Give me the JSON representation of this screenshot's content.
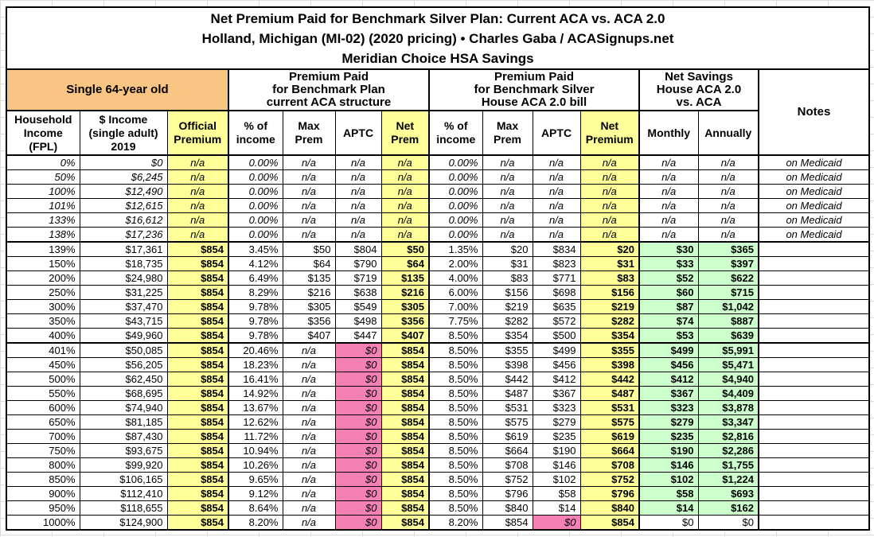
{
  "colors": {
    "orange": "#F8C583",
    "yellow": "#FFFF99",
    "pink": "#F480B4",
    "green": "#CCFFCC",
    "grid": "#DCDCDC",
    "border": "#000000"
  },
  "chart_data": {
    "type": "table",
    "title": "Net Premium Paid for Benchmark Silver Plan: Current ACA vs. ACA 2.0",
    "subtitle": "Holland, Michigan (MI-02) (2020 pricing) • Charles Gaba / ACASignups.net",
    "subtitle2": "Meridian Choice HSA Savings",
    "column_groups": {
      "subject": "Single 64-year old",
      "aca": "Premium Paid\nfor Benchmark Plan\ncurrent ACA structure",
      "aca2": "Premium Paid\nfor Benchmark Silver\nHouse ACA 2.0 bill",
      "savings": "Net Savings\nHouse ACA 2.0\nvs. ACA",
      "notes": "Notes"
    },
    "column_headers": {
      "fpl": "Household\nIncome\n(FPL)",
      "income": "$ Income\n(single adult)\n2019",
      "official": "Official\nPremium",
      "pct1": "% of\nincome",
      "max1": "Max\nPrem",
      "aptc1": "APTC",
      "net1": "Net\nPrem",
      "pct2": "% of\nincome",
      "max2": "Max\nPrem",
      "aptc2": "APTC",
      "net2": "Net\nPremium",
      "monthly": "Monthly",
      "annually": "Annually"
    },
    "rows": [
      {
        "fpl": "0%",
        "income": "$0",
        "official": "n/a",
        "pct1": "0.00%",
        "max1": "n/a",
        "aptc1": "n/a",
        "net1": "n/a",
        "pct2": "0.00%",
        "max2": "n/a",
        "aptc2": "n/a",
        "net2": "n/a",
        "monthly": "n/a",
        "annually": "n/a",
        "note": "on Medicaid"
      },
      {
        "fpl": "50%",
        "income": "$6,245",
        "official": "n/a",
        "pct1": "0.00%",
        "max1": "n/a",
        "aptc1": "n/a",
        "net1": "n/a",
        "pct2": "0.00%",
        "max2": "n/a",
        "aptc2": "n/a",
        "net2": "n/a",
        "monthly": "n/a",
        "annually": "n/a",
        "note": "on Medicaid"
      },
      {
        "fpl": "100%",
        "income": "$12,490",
        "official": "n/a",
        "pct1": "0.00%",
        "max1": "n/a",
        "aptc1": "n/a",
        "net1": "n/a",
        "pct2": "0.00%",
        "max2": "n/a",
        "aptc2": "n/a",
        "net2": "n/a",
        "monthly": "n/a",
        "annually": "n/a",
        "note": "on Medicaid"
      },
      {
        "fpl": "101%",
        "income": "$12,615",
        "official": "n/a",
        "pct1": "0.00%",
        "max1": "n/a",
        "aptc1": "n/a",
        "net1": "n/a",
        "pct2": "0.00%",
        "max2": "n/a",
        "aptc2": "n/a",
        "net2": "n/a",
        "monthly": "n/a",
        "annually": "n/a",
        "note": "on Medicaid"
      },
      {
        "fpl": "133%",
        "income": "$16,612",
        "official": "n/a",
        "pct1": "0.00%",
        "max1": "n/a",
        "aptc1": "n/a",
        "net1": "n/a",
        "pct2": "0.00%",
        "max2": "n/a",
        "aptc2": "n/a",
        "net2": "n/a",
        "monthly": "n/a",
        "annually": "n/a",
        "note": "on Medicaid"
      },
      {
        "fpl": "138%",
        "income": "$17,236",
        "official": "n/a",
        "pct1": "0.00%",
        "max1": "n/a",
        "aptc1": "n/a",
        "net1": "n/a",
        "pct2": "0.00%",
        "max2": "n/a",
        "aptc2": "n/a",
        "net2": "n/a",
        "monthly": "n/a",
        "annually": "n/a",
        "note": "on Medicaid"
      },
      {
        "fpl": "139%",
        "income": "$17,361",
        "official": "$854",
        "pct1": "3.45%",
        "max1": "$50",
        "aptc1": "$804",
        "net1": "$50",
        "pct2": "1.35%",
        "max2": "$20",
        "aptc2": "$834",
        "net2": "$20",
        "monthly": "$30",
        "annually": "$365",
        "note": ""
      },
      {
        "fpl": "150%",
        "income": "$18,735",
        "official": "$854",
        "pct1": "4.12%",
        "max1": "$64",
        "aptc1": "$790",
        "net1": "$64",
        "pct2": "2.00%",
        "max2": "$31",
        "aptc2": "$823",
        "net2": "$31",
        "monthly": "$33",
        "annually": "$397",
        "note": ""
      },
      {
        "fpl": "200%",
        "income": "$24,980",
        "official": "$854",
        "pct1": "6.49%",
        "max1": "$135",
        "aptc1": "$719",
        "net1": "$135",
        "pct2": "4.00%",
        "max2": "$83",
        "aptc2": "$771",
        "net2": "$83",
        "monthly": "$52",
        "annually": "$622",
        "note": ""
      },
      {
        "fpl": "250%",
        "income": "$31,225",
        "official": "$854",
        "pct1": "8.29%",
        "max1": "$216",
        "aptc1": "$638",
        "net1": "$216",
        "pct2": "6.00%",
        "max2": "$156",
        "aptc2": "$698",
        "net2": "$156",
        "monthly": "$60",
        "annually": "$715",
        "note": ""
      },
      {
        "fpl": "300%",
        "income": "$37,470",
        "official": "$854",
        "pct1": "9.78%",
        "max1": "$305",
        "aptc1": "$549",
        "net1": "$305",
        "pct2": "7.00%",
        "max2": "$219",
        "aptc2": "$635",
        "net2": "$219",
        "monthly": "$87",
        "annually": "$1,042",
        "note": ""
      },
      {
        "fpl": "350%",
        "income": "$43,715",
        "official": "$854",
        "pct1": "9.78%",
        "max1": "$356",
        "aptc1": "$498",
        "net1": "$356",
        "pct2": "7.75%",
        "max2": "$282",
        "aptc2": "$572",
        "net2": "$282",
        "monthly": "$74",
        "annually": "$887",
        "note": ""
      },
      {
        "fpl": "400%",
        "income": "$49,960",
        "official": "$854",
        "pct1": "9.78%",
        "max1": "$407",
        "aptc1": "$447",
        "net1": "$407",
        "pct2": "8.50%",
        "max2": "$354",
        "aptc2": "$500",
        "net2": "$354",
        "monthly": "$53",
        "annually": "$639",
        "note": ""
      },
      {
        "fpl": "401%",
        "income": "$50,085",
        "official": "$854",
        "pct1": "20.46%",
        "max1": "n/a",
        "aptc1": "$0",
        "net1": "$854",
        "pct2": "8.50%",
        "max2": "$355",
        "aptc2": "$499",
        "net2": "$355",
        "monthly": "$499",
        "annually": "$5,991",
        "note": ""
      },
      {
        "fpl": "450%",
        "income": "$56,205",
        "official": "$854",
        "pct1": "18.23%",
        "max1": "n/a",
        "aptc1": "$0",
        "net1": "$854",
        "pct2": "8.50%",
        "max2": "$398",
        "aptc2": "$456",
        "net2": "$398",
        "monthly": "$456",
        "annually": "$5,471",
        "note": ""
      },
      {
        "fpl": "500%",
        "income": "$62,450",
        "official": "$854",
        "pct1": "16.41%",
        "max1": "n/a",
        "aptc1": "$0",
        "net1": "$854",
        "pct2": "8.50%",
        "max2": "$442",
        "aptc2": "$412",
        "net2": "$442",
        "monthly": "$412",
        "annually": "$4,940",
        "note": ""
      },
      {
        "fpl": "550%",
        "income": "$68,695",
        "official": "$854",
        "pct1": "14.92%",
        "max1": "n/a",
        "aptc1": "$0",
        "net1": "$854",
        "pct2": "8.50%",
        "max2": "$487",
        "aptc2": "$367",
        "net2": "$487",
        "monthly": "$367",
        "annually": "$4,409",
        "note": ""
      },
      {
        "fpl": "600%",
        "income": "$74,940",
        "official": "$854",
        "pct1": "13.67%",
        "max1": "n/a",
        "aptc1": "$0",
        "net1": "$854",
        "pct2": "8.50%",
        "max2": "$531",
        "aptc2": "$323",
        "net2": "$531",
        "monthly": "$323",
        "annually": "$3,878",
        "note": ""
      },
      {
        "fpl": "650%",
        "income": "$81,185",
        "official": "$854",
        "pct1": "12.62%",
        "max1": "n/a",
        "aptc1": "$0",
        "net1": "$854",
        "pct2": "8.50%",
        "max2": "$575",
        "aptc2": "$279",
        "net2": "$575",
        "monthly": "$279",
        "annually": "$3,347",
        "note": ""
      },
      {
        "fpl": "700%",
        "income": "$87,430",
        "official": "$854",
        "pct1": "11.72%",
        "max1": "n/a",
        "aptc1": "$0",
        "net1": "$854",
        "pct2": "8.50%",
        "max2": "$619",
        "aptc2": "$235",
        "net2": "$619",
        "monthly": "$235",
        "annually": "$2,816",
        "note": ""
      },
      {
        "fpl": "750%",
        "income": "$93,675",
        "official": "$854",
        "pct1": "10.94%",
        "max1": "n/a",
        "aptc1": "$0",
        "net1": "$854",
        "pct2": "8.50%",
        "max2": "$664",
        "aptc2": "$190",
        "net2": "$664",
        "monthly": "$190",
        "annually": "$2,286",
        "note": ""
      },
      {
        "fpl": "800%",
        "income": "$99,920",
        "official": "$854",
        "pct1": "10.26%",
        "max1": "n/a",
        "aptc1": "$0",
        "net1": "$854",
        "pct2": "8.50%",
        "max2": "$708",
        "aptc2": "$146",
        "net2": "$708",
        "monthly": "$146",
        "annually": "$1,755",
        "note": ""
      },
      {
        "fpl": "850%",
        "income": "$106,165",
        "official": "$854",
        "pct1": "9.65%",
        "max1": "n/a",
        "aptc1": "$0",
        "net1": "$854",
        "pct2": "8.50%",
        "max2": "$752",
        "aptc2": "$102",
        "net2": "$752",
        "monthly": "$102",
        "annually": "$1,224",
        "note": ""
      },
      {
        "fpl": "900%",
        "income": "$112,410",
        "official": "$854",
        "pct1": "9.12%",
        "max1": "n/a",
        "aptc1": "$0",
        "net1": "$854",
        "pct2": "8.50%",
        "max2": "$796",
        "aptc2": "$58",
        "net2": "$796",
        "monthly": "$58",
        "annually": "$693",
        "note": ""
      },
      {
        "fpl": "950%",
        "income": "$118,655",
        "official": "$854",
        "pct1": "8.64%",
        "max1": "n/a",
        "aptc1": "$0",
        "net1": "$854",
        "pct2": "8.50%",
        "max2": "$840",
        "aptc2": "$14",
        "net2": "$840",
        "monthly": "$14",
        "annually": "$162",
        "note": ""
      },
      {
        "fpl": "1000%",
        "income": "$124,900",
        "official": "$854",
        "pct1": "8.20%",
        "max1": "n/a",
        "aptc1": "$0",
        "net1": "$854",
        "pct2": "8.20%",
        "max2": "$854",
        "aptc2": "$0",
        "net2": "$854",
        "monthly": "$0",
        "annually": "$0",
        "note": ""
      }
    ]
  }
}
